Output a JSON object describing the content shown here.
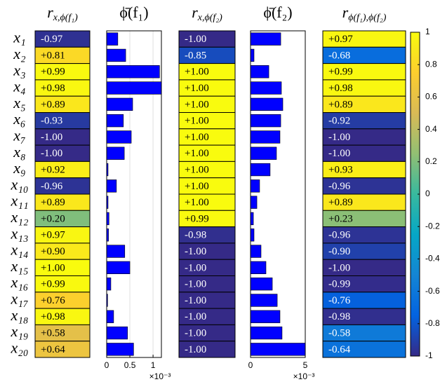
{
  "chart_data": [
    {
      "type": "heatmap",
      "title": {
        "symbol": "r",
        "subscript": "x,ϕ(f₁)"
      },
      "categories": [
        "x₁",
        "x₂",
        "x₃",
        "x₄",
        "x₅",
        "x₆",
        "x₇",
        "x₈",
        "x₉",
        "x₁₀",
        "x₁₁",
        "x₁₂",
        "x₁₃",
        "x₁₄",
        "x₁₅",
        "x₁₆",
        "x₁₇",
        "x₁₈",
        "x₁₉",
        "x₂₀"
      ],
      "values": [
        -0.97,
        0.81,
        0.99,
        0.98,
        0.89,
        -0.93,
        -1.0,
        -1.0,
        0.92,
        -0.96,
        0.89,
        0.2,
        0.97,
        0.9,
        1.0,
        0.99,
        0.76,
        0.98,
        0.58,
        0.64
      ],
      "value_labels": [
        "-0.97",
        "+0.81",
        "+0.99",
        "+0.98",
        "+0.89",
        "-0.93",
        "-1.00",
        "-1.00",
        "+0.92",
        "-0.96",
        "+0.89",
        "+0.20",
        "+0.97",
        "+0.90",
        "+1.00",
        "+0.99",
        "+0.76",
        "+0.98",
        "+0.58",
        "+0.64"
      ]
    },
    {
      "type": "bar",
      "title": "ϕ̄(f₁)",
      "color": "#0000ff",
      "values": [
        0.24,
        0.41,
        1.14,
        1.18,
        0.56,
        0.36,
        0.53,
        0.38,
        0.03,
        0.21,
        0.03,
        0.05,
        0.04,
        0.39,
        0.5,
        0.09,
        0.02,
        0.15,
        0.45,
        0.58
      ],
      "xlim": [
        0,
        1.18
      ],
      "xticks": [
        0,
        0.5,
        1
      ],
      "x_multiplier": "×10⁻³",
      "grid": true
    },
    {
      "type": "heatmap",
      "title": {
        "symbol": "r",
        "subscript": "x,ϕ(f₂)"
      },
      "values": [
        -1,
        -0.85,
        1,
        1,
        1,
        1,
        1,
        1,
        1,
        1,
        1,
        0.99,
        -0.98,
        -1,
        -1,
        -1,
        -1,
        -1,
        -1,
        -1
      ],
      "value_labels": [
        "-1.00",
        "-0.85",
        "+1.00",
        "+1.00",
        "+1.00",
        "+1.00",
        "+1.00",
        "+1.00",
        "+1.00",
        "+1.00",
        "+1.00",
        "+0.99",
        "-0.98",
        "-1.00",
        "-1.00",
        "-1.00",
        "-1.00",
        "-1.00",
        "-1.00",
        "-1.00"
      ]
    },
    {
      "type": "bar",
      "title": "ϕ̄(f₂)",
      "color": "#0000ff",
      "values": [
        2.76,
        0.32,
        1.67,
        2.82,
        2.95,
        2.76,
        2.69,
        2.37,
        1.79,
        0.83,
        0.58,
        0.26,
        0.32,
        0.96,
        1.41,
        1.99,
        2.44,
        2.69,
        2.88,
        5.0
      ],
      "xlim": [
        0,
        5
      ],
      "xticks": [
        0,
        5
      ],
      "x_multiplier": "×10⁻³",
      "grid": false
    },
    {
      "type": "heatmap",
      "title": {
        "symbol": "r",
        "subscript": "ϕ(f₁),ϕ(f₂)"
      },
      "values": [
        0.97,
        -0.68,
        0.99,
        0.98,
        0.89,
        -0.92,
        -1.0,
        -1.0,
        0.93,
        -0.96,
        0.89,
        0.23,
        -0.96,
        -0.9,
        -1.0,
        -0.99,
        -0.76,
        -0.98,
        -0.58,
        -0.64
      ],
      "value_labels": [
        "+0.97",
        "-0.68",
        "+0.99",
        "+0.98",
        "+0.89",
        "-0.92",
        "-1.00",
        "-1.00",
        "+0.93",
        "-0.96",
        "+0.89",
        "+0.23",
        "-0.96",
        "-0.90",
        "-1.00",
        "-0.99",
        "-0.76",
        "-0.98",
        "-0.58",
        "-0.64"
      ]
    },
    {
      "type": "colorbar",
      "ylim": [
        -1,
        1
      ],
      "yticks": [
        1,
        0.8,
        0.6,
        0.4,
        0.2,
        0,
        -0.2,
        -0.4,
        -0.6,
        -0.8,
        -1
      ],
      "colormap": [
        "#352a87",
        "#0363e1",
        "#1485d4",
        "#06a7c6",
        "#38b99e",
        "#92bf73",
        "#d9ba56",
        "#fcce2e",
        "#f9fb0e"
      ]
    }
  ]
}
